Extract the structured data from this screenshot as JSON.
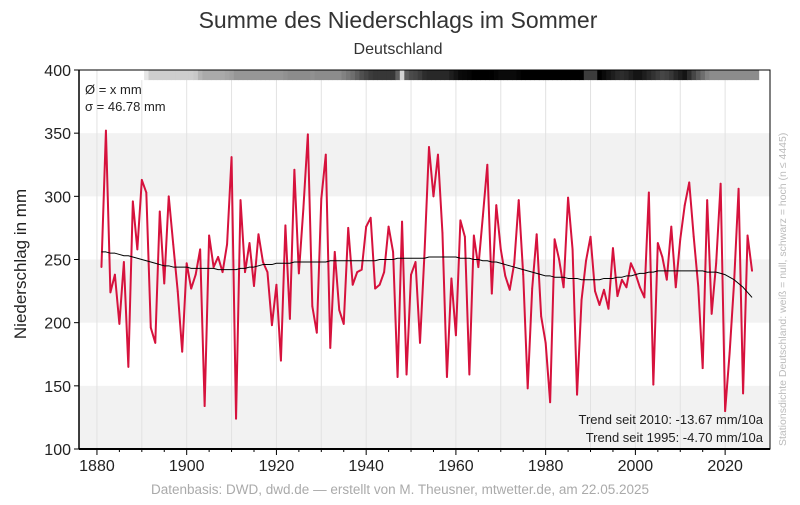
{
  "colors": {
    "series": "#d6123d",
    "trend_line": "#000000",
    "band": "#f2f2f2",
    "grid": "#e2e2e2",
    "axis": "#000000",
    "footer_text": "#aaaaaa"
  },
  "header": {
    "title": "Summe des Niederschlags im Sommer",
    "subtitle": "Deutschland"
  },
  "stats": {
    "mean_label": "Ø = x mm",
    "sigma_label": "σ = 46.78 mm"
  },
  "trends": {
    "line1": "Trend seit 2010: -13.67 mm/10a",
    "line2": "Trend seit 1995: -4.70 mm/10a"
  },
  "side_note": "Stationsdichte Deutschland: weiß = null, schwarz = hoch (n ≤ 4445)",
  "footer": {
    "source": "Datenbasis: DWD, dwd.de — erstellt von M. Theusner, mtwetter.de, am 22.05.2025"
  },
  "chart_data": {
    "type": "line",
    "title": "Summe des Niederschlags im Sommer",
    "subtitle": "Deutschland",
    "ylabel": "Niederschlag in mm",
    "xlabel": "",
    "xlim": [
      1876,
      2030
    ],
    "ylim": [
      100,
      400
    ],
    "x_ticks": [
      1880,
      1900,
      1920,
      1940,
      1960,
      1980,
      2000,
      2020
    ],
    "y_ticks": [
      100,
      150,
      200,
      250,
      300,
      350,
      400
    ],
    "x_start": 1881,
    "grid": true,
    "legend": "none",
    "series": [
      {
        "color": "#d6123d",
        "values": [
          244,
          352,
          224,
          238,
          199,
          248,
          165,
          296,
          258,
          313,
          303,
          196,
          184,
          288,
          231,
          300,
          262,
          225,
          177,
          247,
          227,
          238,
          258,
          134,
          269,
          244,
          252,
          240,
          262,
          331,
          124,
          297,
          240,
          263,
          229,
          270,
          248,
          240,
          198,
          230,
          170,
          277,
          203,
          321,
          239,
          290,
          349,
          213,
          192,
          298,
          333,
          180,
          256,
          210,
          199,
          275,
          230,
          240,
          242,
          276,
          283,
          227,
          230,
          240,
          276,
          256,
          157,
          280,
          159,
          238,
          248,
          184,
          255,
          339,
          300,
          333,
          271,
          157,
          235,
          190,
          281,
          268,
          159,
          269,
          244,
          284,
          325,
          223,
          293,
          258,
          237,
          226,
          247,
          297,
          238,
          148,
          227,
          270,
          205,
          184,
          137,
          266,
          250,
          228,
          299,
          258,
          143,
          218,
          249,
          268,
          225,
          214,
          226,
          211,
          259,
          221,
          234,
          228,
          247,
          239,
          228,
          220,
          303,
          151,
          263,
          252,
          234,
          276,
          228,
          266,
          293,
          311,
          268,
          229,
          164,
          297,
          207,
          247,
          310,
          130,
          176,
          232,
          306,
          144,
          269,
          241
        ]
      },
      {
        "name": "Trend",
        "color": "#000000",
        "smooth": true,
        "values": [
          256,
          256,
          255,
          255,
          254,
          253,
          253,
          252,
          251,
          250,
          249,
          248,
          247,
          246,
          245,
          245,
          244,
          244,
          244,
          244,
          243,
          243,
          243,
          243,
          243,
          243,
          242,
          242,
          242,
          242,
          242,
          243,
          243,
          244,
          244,
          245,
          246,
          246,
          246,
          247,
          247,
          247,
          247,
          248,
          248,
          248,
          248,
          248,
          248,
          248,
          248,
          249,
          249,
          249,
          249,
          249,
          249,
          249,
          249,
          249,
          249,
          249,
          250,
          250,
          250,
          250,
          251,
          251,
          251,
          251,
          251,
          251,
          251,
          252,
          252,
          252,
          252,
          252,
          252,
          252,
          251,
          251,
          251,
          250,
          250,
          249,
          249,
          248,
          248,
          247,
          246,
          245,
          244,
          243,
          242,
          241,
          240,
          239,
          238,
          237,
          237,
          236,
          236,
          236,
          235,
          235,
          235,
          234,
          234,
          234,
          234,
          234,
          235,
          235,
          235,
          236,
          236,
          237,
          237,
          238,
          239,
          239,
          240,
          240,
          241,
          241,
          241,
          241,
          241,
          241,
          241,
          241,
          241,
          241,
          241,
          240,
          240,
          240,
          239,
          238,
          236,
          234,
          231,
          228,
          224,
          220
        ]
      }
    ],
    "station_density_bar": {
      "legend": "weiß = null, schwarz = hoch",
      "grey_levels": [
        255,
        255,
        255,
        255,
        255,
        255,
        255,
        255,
        255,
        255,
        230,
        205,
        205,
        205,
        205,
        205,
        205,
        205,
        205,
        205,
        205,
        200,
        180,
        170,
        170,
        170,
        170,
        170,
        165,
        160,
        150,
        150,
        150,
        150,
        150,
        150,
        150,
        150,
        150,
        150,
        150,
        145,
        140,
        140,
        140,
        140,
        140,
        145,
        140,
        140,
        140,
        140,
        140,
        140,
        130,
        120,
        110,
        95,
        80,
        70,
        60,
        55,
        55,
        55,
        55,
        55,
        95,
        210,
        90,
        75,
        70,
        60,
        45,
        40,
        40,
        40,
        40,
        40,
        30,
        20,
        10,
        8,
        5,
        0,
        0,
        0,
        0,
        0,
        5,
        10,
        10,
        10,
        10,
        5,
        0,
        0,
        0,
        0,
        0,
        0,
        0,
        0,
        0,
        0,
        0,
        0,
        0,
        0,
        60,
        60,
        60,
        0,
        10,
        20,
        30,
        40,
        45,
        40,
        30,
        20,
        20,
        30,
        40,
        50,
        60,
        70,
        65,
        55,
        40,
        30,
        20,
        45,
        70,
        90,
        110,
        130,
        140,
        140,
        140,
        140,
        140,
        140,
        140,
        140,
        140,
        140,
        140
      ]
    }
  }
}
